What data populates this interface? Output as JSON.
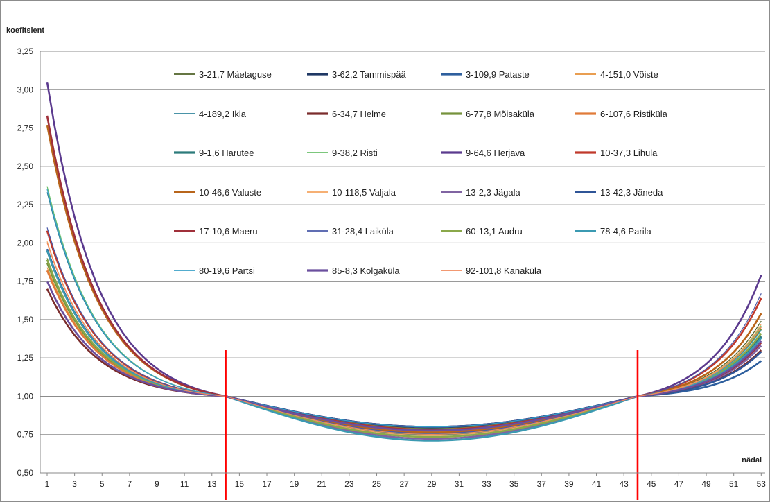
{
  "chart_data": {
    "type": "line",
    "ylabel": "koefitsient",
    "xlabel": "nädal",
    "xlim": [
      1,
      53
    ],
    "ylim": [
      0.5,
      3.25
    ],
    "yticks": [
      "0,50",
      "0,75",
      "1,00",
      "1,25",
      "1,50",
      "1,75",
      "2,00",
      "2,25",
      "2,50",
      "2,75",
      "3,00",
      "3,25"
    ],
    "xticks": [
      "1",
      "3",
      "5",
      "7",
      "9",
      "11",
      "13",
      "15",
      "17",
      "19",
      "21",
      "23",
      "25",
      "27",
      "29",
      "31",
      "33",
      "35",
      "37",
      "39",
      "41",
      "43",
      "45",
      "47",
      "49",
      "51",
      "53"
    ],
    "grid": "horizontal",
    "legend": "inside-top",
    "vertical_markers": [
      {
        "x": 14,
        "color": "#ff0000"
      },
      {
        "x": 44,
        "color": "#ff0000"
      }
    ],
    "series": [
      {
        "name": "3-21,7 Mäetaguse",
        "color": "#4f6228",
        "width": 1.2,
        "start": 1.9,
        "end": 1.49
      },
      {
        "name": "3-62,2 Tammispää",
        "color": "#1f3864",
        "width": 2.6,
        "start": 1.95,
        "end": 1.39
      },
      {
        "name": "3-109,9 Pataste",
        "color": "#2e5f9e",
        "width": 2.6,
        "start": 2.08,
        "end": 1.23
      },
      {
        "name": "4-151,0 Võiste",
        "color": "#e69138",
        "width": 1.2,
        "start": 1.84,
        "end": 1.45
      },
      {
        "name": "4-189,2 Ikla",
        "color": "#31849b",
        "width": 1.2,
        "start": 2.33,
        "end": 1.39
      },
      {
        "name": "6-34,7 Helme",
        "color": "#7b2c2c",
        "width": 2.6,
        "start": 1.7,
        "end": 1.3
      },
      {
        "name": "6-77,8 Mõisaküla",
        "color": "#76923c",
        "width": 2.6,
        "start": 1.87,
        "end": 1.44
      },
      {
        "name": "6-107,6 Ristiküla",
        "color": "#e07b39",
        "width": 2.6,
        "start": 1.82,
        "end": 1.54
      },
      {
        "name": "9-1,6 Harutee",
        "color": "#2c7b7b",
        "width": 2.6,
        "start": 1.95,
        "end": 1.39
      },
      {
        "name": "9-38,2 Risti",
        "color": "#6abf69",
        "width": 1.2,
        "start": 2.37,
        "end": 1.46
      },
      {
        "name": "9-64,6 Herjava",
        "color": "#5b3a8e",
        "width": 2.6,
        "start": 3.05,
        "end": 1.79
      },
      {
        "name": "10-37,3 Lihula",
        "color": "#c0392b",
        "width": 2.6,
        "start": 2.08,
        "end": 1.64
      },
      {
        "name": "10-46,6 Valuste",
        "color": "#b8651b",
        "width": 2.6,
        "start": 2.77,
        "end": 1.54
      },
      {
        "name": "10-118,5 Valjala",
        "color": "#f4a460",
        "width": 1.2,
        "start": 2.01,
        "end": 1.47
      },
      {
        "name": "13-2,3 Jägala",
        "color": "#8064a2",
        "width": 2.6,
        "start": 1.75,
        "end": 1.33
      },
      {
        "name": "13-42,3 Jäneda",
        "color": "#2f5597",
        "width": 2.6,
        "start": 1.96,
        "end": 1.29
      },
      {
        "name": "17-10,6 Maeru",
        "color": "#a0303a",
        "width": 2.6,
        "start": 2.83,
        "end": 1.35
      },
      {
        "name": "31-28,4 Laiküla",
        "color": "#4a5aa8",
        "width": 1.2,
        "start": 2.1,
        "end": 1.67
      },
      {
        "name": "60-13,1 Audru",
        "color": "#8aa84a",
        "width": 2.6,
        "start": 1.89,
        "end": 1.41
      },
      {
        "name": "78-4,6 Parila",
        "color": "#3b9ab2",
        "width": 2.6,
        "start": 1.95,
        "end": 1.38
      },
      {
        "name": "80-19,6 Partsi",
        "color": "#3aa1c7",
        "width": 1.2,
        "start": 2.35,
        "end": 1.43
      },
      {
        "name": "85-8,3 Kolgaküla",
        "color": "#6b4f9e",
        "width": 2.6,
        "start": 1.75,
        "end": 1.36
      },
      {
        "name": "92-101,8 Kanaküla",
        "color": "#f08a5d",
        "width": 1.2,
        "start": 2.0,
        "end": 1.45
      }
    ]
  }
}
